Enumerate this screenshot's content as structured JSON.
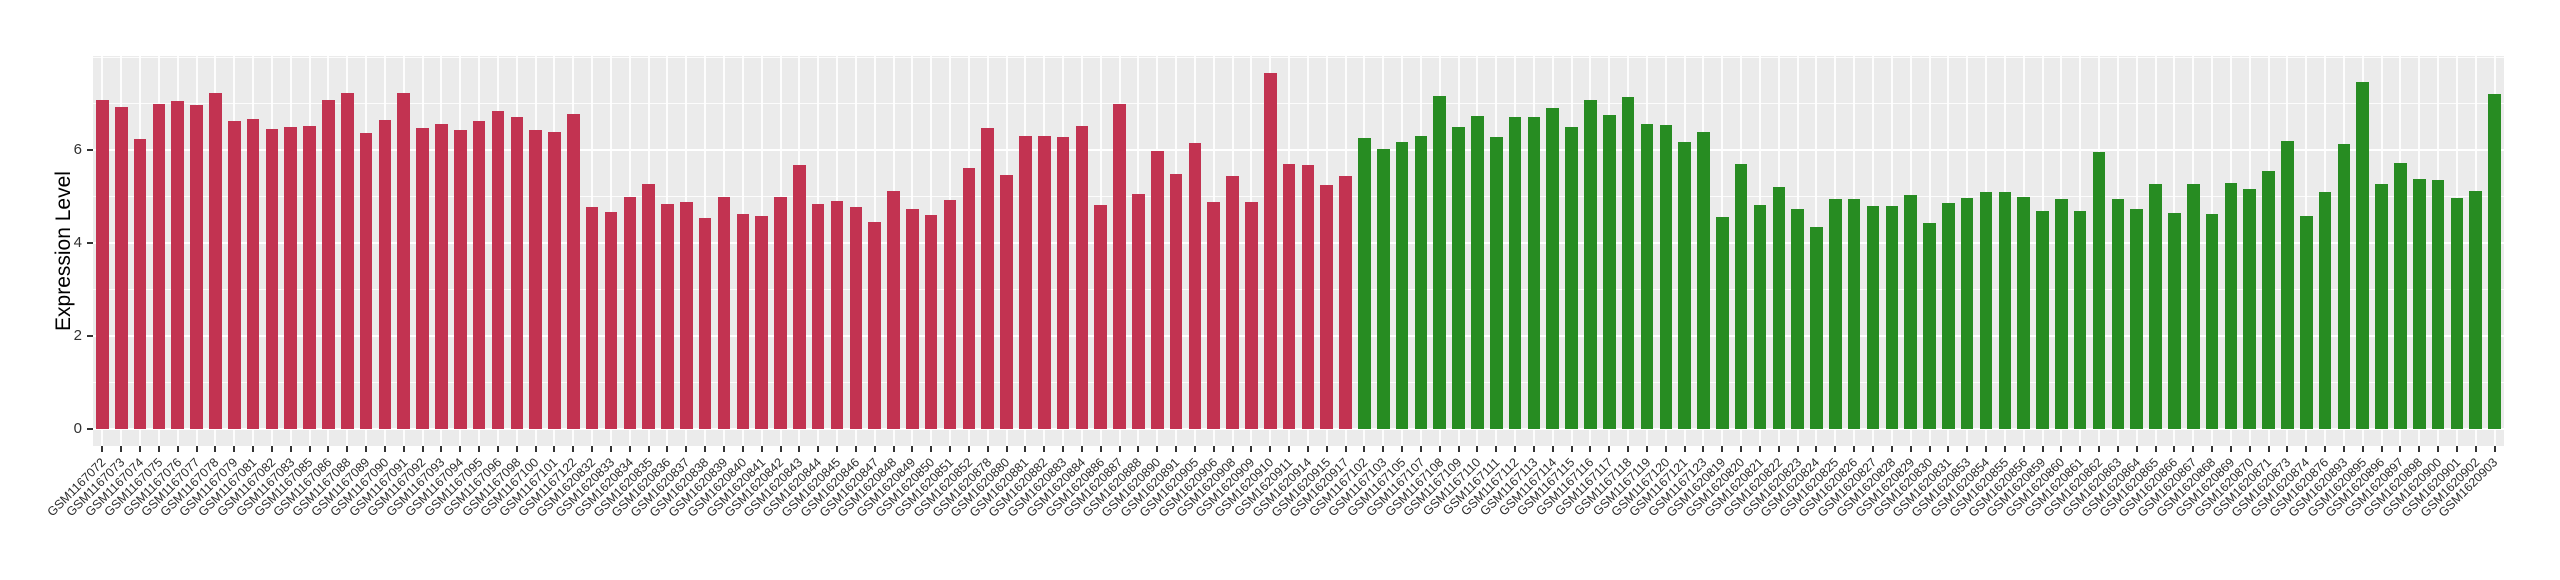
{
  "figure": {
    "title": "",
    "y_axis_title": "Expression Level"
  },
  "chart_data": {
    "type": "bar",
    "title": "",
    "xlabel": "",
    "ylabel": "Expression Level",
    "ylim": [
      0,
      8.04
    ],
    "y_ticks": [
      0,
      2,
      4,
      6
    ],
    "y_minor_gridlines": [
      1,
      3,
      5,
      7,
      8
    ],
    "grid": true,
    "legend_position": "none",
    "panel_background": "#EBEBEB",
    "gridline_color": "#FFFFFF",
    "tick_color": "#333333",
    "series": [
      {
        "name": "group-1-red",
        "color": "#C23351",
        "categories": [
          "GSM1167072",
          "GSM1167073",
          "GSM1167074",
          "GSM1167075",
          "GSM1167076",
          "GSM1167077",
          "GSM1167078",
          "GSM1167079",
          "GSM1167081",
          "GSM1167082",
          "GSM1167083",
          "GSM1167085",
          "GSM1167086",
          "GSM1167088",
          "GSM1167089",
          "GSM1167090",
          "GSM1167091",
          "GSM1167092",
          "GSM1167093",
          "GSM1167094",
          "GSM1167095",
          "GSM1167096",
          "GSM1167098",
          "GSM1167100",
          "GSM1167101",
          "GSM1167122",
          "GSM1620832",
          "GSM1620833",
          "GSM1620834",
          "GSM1620835",
          "GSM1620836",
          "GSM1620837",
          "GSM1620838",
          "GSM1620839",
          "GSM1620840",
          "GSM1620841",
          "GSM1620842",
          "GSM1620843",
          "GSM1620844",
          "GSM1620845",
          "GSM1620846",
          "GSM1620847",
          "GSM1620848",
          "GSM1620849",
          "GSM1620850",
          "GSM1620851",
          "GSM1620852",
          "GSM1620878",
          "GSM1620880",
          "GSM1620881",
          "GSM1620882",
          "GSM1620883",
          "GSM1620884",
          "GSM1620886",
          "GSM1620887",
          "GSM1620888",
          "GSM1620890",
          "GSM1620891",
          "GSM1620905",
          "GSM1620906",
          "GSM1620908",
          "GSM1620909",
          "GSM1620910",
          "GSM1620911",
          "GSM1620914",
          "GSM1620915",
          "GSM1620917"
        ],
        "values": [
          7.08,
          6.94,
          6.24,
          7.0,
          7.05,
          6.98,
          7.24,
          6.63,
          6.67,
          6.46,
          6.5,
          6.53,
          7.09,
          7.24,
          6.37,
          6.64,
          7.24,
          6.47,
          6.57,
          6.44,
          6.62,
          6.85,
          6.72,
          6.44,
          6.39,
          6.77,
          4.78,
          4.66,
          5.0,
          5.27,
          4.83,
          4.89,
          4.53,
          5.0,
          4.63,
          4.59,
          5.0,
          5.68,
          4.85,
          4.91,
          4.78,
          4.45,
          5.12,
          4.73,
          4.6,
          4.93,
          5.62,
          6.47,
          5.47,
          6.31,
          6.31,
          6.28,
          6.53,
          4.81,
          7.0,
          5.06,
          5.98,
          5.49,
          6.15,
          4.88,
          5.44,
          4.88,
          7.66,
          5.7,
          5.68,
          5.24,
          5.45
        ]
      },
      {
        "name": "group-2-green",
        "color": "#278C22",
        "categories": [
          "GSM1167102",
          "GSM1167103",
          "GSM1167105",
          "GSM1167107",
          "GSM1167108",
          "GSM1167109",
          "GSM1167110",
          "GSM1167111",
          "GSM1167112",
          "GSM1167113",
          "GSM1167114",
          "GSM1167115",
          "GSM1167116",
          "GSM1167117",
          "GSM1167118",
          "GSM1167119",
          "GSM1167120",
          "GSM1167121",
          "GSM1167123",
          "GSM1620819",
          "GSM1620820",
          "GSM1620821",
          "GSM1620822",
          "GSM1620823",
          "GSM1620824",
          "GSM1620825",
          "GSM1620826",
          "GSM1620827",
          "GSM1620828",
          "GSM1620829",
          "GSM1620830",
          "GSM1620831",
          "GSM1620853",
          "GSM1620854",
          "GSM1620855",
          "GSM1620856",
          "GSM1620859",
          "GSM1620860",
          "GSM1620861",
          "GSM1620862",
          "GSM1620863",
          "GSM1620864",
          "GSM1620865",
          "GSM1620866",
          "GSM1620867",
          "GSM1620868",
          "GSM1620869",
          "GSM1620870",
          "GSM1620871",
          "GSM1620873",
          "GSM1620874",
          "GSM1620876",
          "GSM1620893",
          "GSM1620895",
          "GSM1620896",
          "GSM1620897",
          "GSM1620898",
          "GSM1620900",
          "GSM1620901",
          "GSM1620902",
          "GSM1620903"
        ],
        "values": [
          6.26,
          6.03,
          6.18,
          6.31,
          7.17,
          6.5,
          6.74,
          6.28,
          6.72,
          6.72,
          6.9,
          6.5,
          7.08,
          6.76,
          7.14,
          6.57,
          6.54,
          6.17,
          6.4,
          4.55,
          5.7,
          4.82,
          5.2,
          4.73,
          4.35,
          4.95,
          4.95,
          4.8,
          4.8,
          5.03,
          4.43,
          4.86,
          4.98,
          5.09,
          5.09,
          5.0,
          4.69,
          4.95,
          4.69,
          5.96,
          4.95,
          4.73,
          5.27,
          4.64,
          5.27,
          4.63,
          5.3,
          5.17,
          5.55,
          6.19,
          4.58,
          5.09,
          6.13,
          7.47,
          5.27,
          5.72,
          5.38,
          5.36,
          4.97,
          5.12,
          7.21
        ]
      }
    ]
  }
}
